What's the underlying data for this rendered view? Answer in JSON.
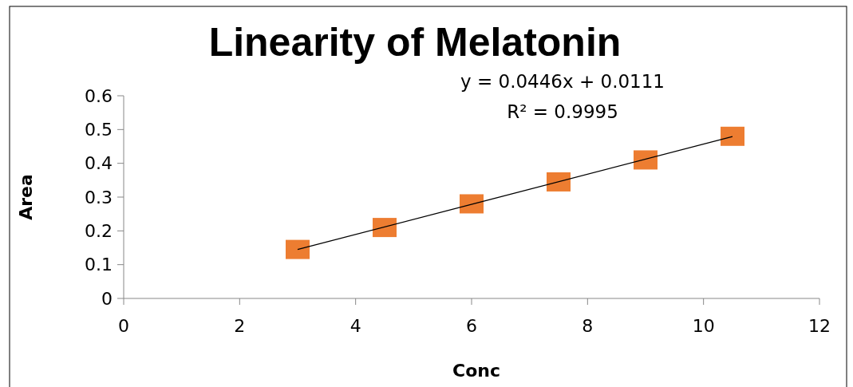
{
  "chart_data": {
    "type": "scatter",
    "title": "Linearity of Melatonin",
    "xlabel": "Conc",
    "ylabel": "Area",
    "xlim": [
      0,
      12
    ],
    "xticks": [
      0,
      2,
      4,
      6,
      8,
      10,
      12
    ],
    "ylim": [
      0,
      0.6
    ],
    "yticks": [
      0,
      0.1,
      0.2,
      0.3,
      0.4,
      0.5,
      0.6
    ],
    "grid": false,
    "annotations": [
      "y = 0.0446x + 0.0111",
      "R² = 0.9995"
    ],
    "series": [
      {
        "color": "#ed7d31",
        "marker": "square",
        "x": [
          3,
          4.5,
          6,
          7.5,
          9,
          10.5
        ],
        "values": [
          0.145,
          0.21,
          0.28,
          0.345,
          0.41,
          0.48
        ]
      },
      {
        "type": "line",
        "color": "#000000",
        "line_style": "solid",
        "x": [
          3,
          10.5
        ],
        "values": [
          0.145,
          0.479
        ]
      }
    ]
  }
}
